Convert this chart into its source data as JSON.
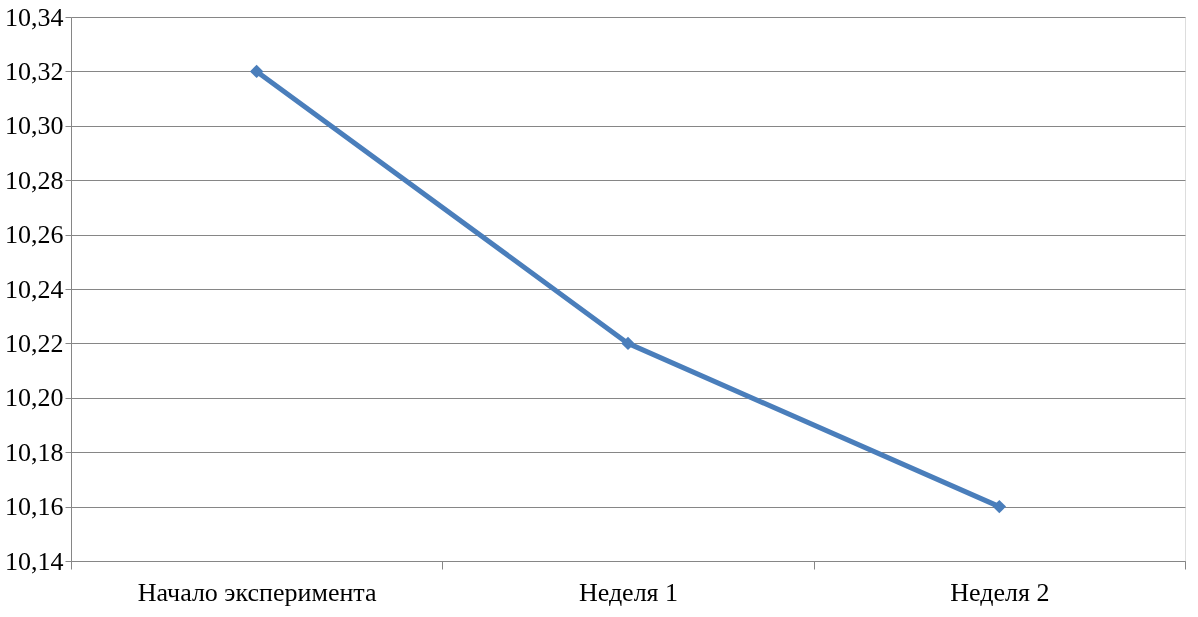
{
  "chart_data": {
    "type": "line",
    "categories": [
      "Начало эксперимента",
      "Неделя 1",
      "Неделя 2"
    ],
    "series": [
      {
        "color": "#4a7ebb",
        "values": [
          10.32,
          10.22,
          10.16
        ]
      }
    ],
    "ylim": [
      10.14,
      10.34
    ],
    "yticks": [
      {
        "value": 10.14,
        "label": "10,14"
      },
      {
        "value": 10.16,
        "label": "10,16"
      },
      {
        "value": 10.18,
        "label": "10,18"
      },
      {
        "value": 10.2,
        "label": "10,20"
      },
      {
        "value": 10.22,
        "label": "10,22"
      },
      {
        "value": 10.24,
        "label": "10,24"
      },
      {
        "value": 10.26,
        "label": "10,26"
      },
      {
        "value": 10.28,
        "label": "10,28"
      },
      {
        "value": 10.3,
        "label": "10,30"
      },
      {
        "value": 10.32,
        "label": "10,32"
      },
      {
        "value": 10.34,
        "label": "10,34"
      }
    ],
    "grid": "y",
    "marker": "diamond",
    "line_style": "solid"
  }
}
